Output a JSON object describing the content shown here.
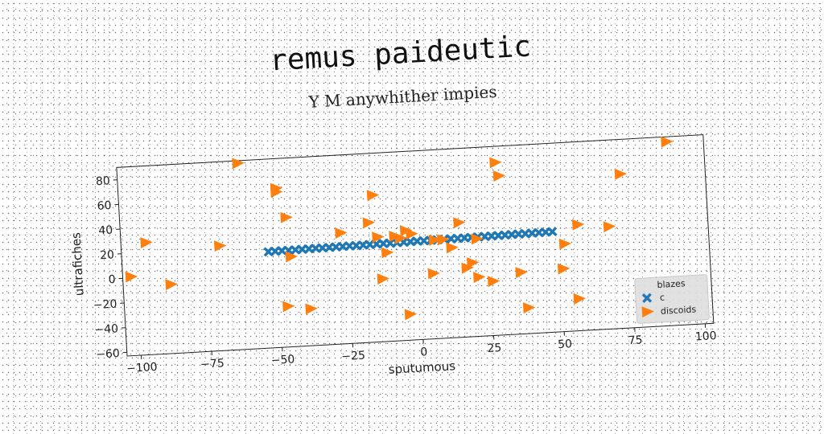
{
  "chart_data": {
    "type": "scatter",
    "title": "remus paideutic",
    "subtitle": "Y M anywhither impies",
    "xlabel": "sputumous",
    "ylabel": "ultrafiches",
    "xlim": [
      -105,
      103
    ],
    "ylim": [
      -63,
      90
    ],
    "xticks": [
      -100,
      -75,
      -50,
      -25,
      0,
      25,
      50,
      75,
      100
    ],
    "yticks": [
      -60,
      -40,
      -20,
      0,
      20,
      40,
      60,
      80
    ],
    "grid": false,
    "legend": {
      "title": "blazes",
      "placement": "bottom-right"
    },
    "series": [
      {
        "name": "c",
        "marker": "X",
        "color": "#1f77b4",
        "x": [
          -53.0,
          -50.6,
          -48.2,
          -45.8,
          -43.4,
          -41.0,
          -38.6,
          -36.2,
          -33.8,
          -31.4,
          -29.0,
          -26.6,
          -24.2,
          -21.8,
          -19.4,
          -17.0,
          -14.6,
          -12.2,
          -9.8,
          -7.4,
          -5.0,
          -2.6,
          -0.2,
          2.2,
          4.6,
          7.0,
          9.4,
          11.8,
          14.2,
          16.6,
          19.0,
          21.4,
          23.8,
          26.2,
          28.6,
          31.0,
          33.4,
          35.8,
          38.2,
          40.6,
          43.0,
          45.4,
          47.8
        ],
        "y": [
          15.0,
          15.1,
          15.2,
          15.2,
          15.3,
          15.4,
          15.5,
          15.6,
          15.6,
          15.7,
          15.8,
          15.9,
          16.0,
          16.0,
          16.1,
          16.2,
          16.3,
          16.4,
          16.4,
          16.5,
          16.6,
          16.7,
          16.8,
          16.8,
          16.9,
          17.0,
          17.1,
          17.2,
          17.2,
          17.3,
          17.4,
          17.5,
          17.6,
          17.6,
          17.7,
          17.8,
          17.9,
          18.0,
          18.0,
          18.1,
          18.2,
          18.3,
          18.4
        ]
      },
      {
        "name": "discoids",
        "marker": "triangle-right",
        "color": "#ff7f0e",
        "x": [
          -102,
          -96,
          -88,
          -70,
          -62,
          -49,
          -49,
          -46,
          -45,
          -47,
          -39,
          -27,
          -17,
          -15,
          -14,
          -13,
          -11,
          -8,
          -6,
          -4,
          -4,
          -2,
          5,
          6,
          9,
          12,
          15,
          17,
          19,
          21,
          21,
          26,
          29,
          30,
          36,
          38,
          51,
          52,
          56,
          57,
          68,
          73,
          90
        ],
        "y": [
          1,
          28,
          -7,
          22,
          88,
          66,
          63,
          42,
          10,
          -30,
          -33,
          27,
          34,
          56,
          22,
          -12,
          9,
          22,
          20,
          26,
          -42,
          23,
          -10,
          17,
          17,
          10,
          30,
          -7,
          -3,
          16,
          -15,
          -19,
          77,
          66,
          -13,
          -42,
          -12,
          8,
          -37,
          23,
          20,
          62,
          86
        ]
      }
    ]
  }
}
